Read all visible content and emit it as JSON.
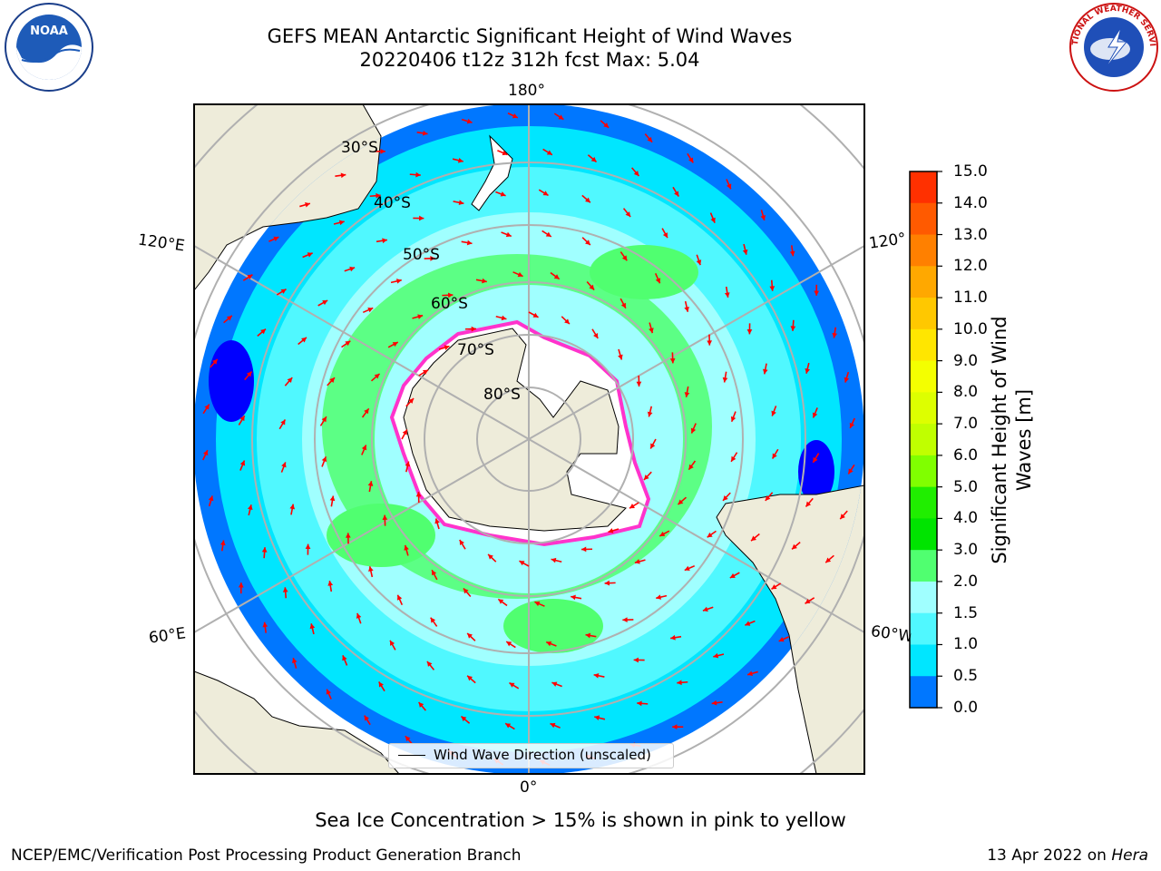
{
  "title": {
    "line1": "GEFS MEAN Antarctic Significant Height of Wind Waves",
    "line2": "20220406 t12z 312h fcst   Max: 5.04"
  },
  "map": {
    "longitude_labels": {
      "top": "180°",
      "bottom": "0°",
      "upper_left": "120°E",
      "upper_right": "120°W",
      "lower_left": "60°E",
      "lower_right": "60°W"
    },
    "latitude_labels": [
      "30°S",
      "40°S",
      "50°S",
      "60°S",
      "70°S",
      "80°S"
    ],
    "legend": "Wind Wave Direction (unscaled)",
    "colors": {
      "land": "#eeecda",
      "ice_edge": "#ff33cc",
      "ice_interior": "#ffffff",
      "arrow": "#ff0000",
      "grid": "#b0b0b0"
    }
  },
  "colorbar": {
    "title": "Significant Height of Wind Waves [m]",
    "tick_labels": [
      "15.0",
      "14.0",
      "13.0",
      "12.0",
      "11.0",
      "10.0",
      "9.0",
      "8.0",
      "7.0",
      "6.0",
      "5.0",
      "4.0",
      "3.0",
      "2.0",
      "1.5",
      "1.0",
      "0.5",
      "0.0"
    ],
    "colors": [
      "#ff0000",
      "#ff3000",
      "#ff5a00",
      "#ff8000",
      "#ffa800",
      "#ffc800",
      "#ffe600",
      "#f4ff00",
      "#ddff00",
      "#c0ff00",
      "#80ff00",
      "#20ee00",
      "#00e400",
      "#50ff70",
      "#a0ffff",
      "#50f8ff",
      "#00e6ff",
      "#0077ff",
      "#0000ff"
    ]
  },
  "note": "Sea Ice Concentration > 15% is shown in pink to yellow",
  "footer": {
    "left": "NCEP/EMC/Verification Post Processing Product Generation Branch",
    "right_date": "13 Apr 2022 on",
    "right_machine": "Hera"
  },
  "logos": {
    "left": "NOAA",
    "right": "NATIONAL WEATHER SERVICE"
  }
}
